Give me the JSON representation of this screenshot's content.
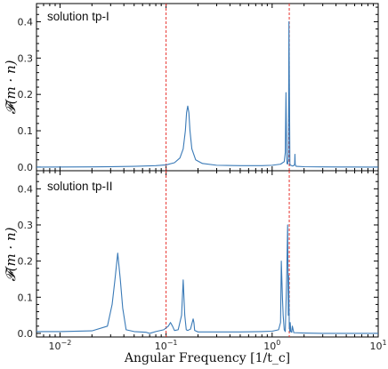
{
  "chart_data": [
    {
      "type": "line",
      "label": "solution tp-I",
      "xscale": "log",
      "xlim": [
        0.006,
        10
      ],
      "ylim": [
        -0.01,
        0.45
      ],
      "yticks": [
        0.0,
        0.1,
        0.2,
        0.3,
        0.4
      ],
      "ylabel": "𝓕(m · n)",
      "vlines": [
        0.1,
        1.45
      ],
      "line_color": "#3a7ab7",
      "vline_color": "#e8322d",
      "series": [
        {
          "x": [
            0.006,
            0.02,
            0.05,
            0.08,
            0.1,
            0.12,
            0.135,
            0.145,
            0.152,
            0.156,
            0.16,
            0.164,
            0.168,
            0.175,
            0.19,
            0.22,
            0.3,
            0.5,
            0.8,
            1.0,
            1.2,
            1.3,
            1.33,
            1.35,
            1.37,
            1.38,
            1.4,
            1.42,
            1.43,
            1.44,
            1.46,
            1.47,
            1.48,
            1.5,
            1.55,
            1.6,
            1.63,
            1.64,
            1.65,
            1.67,
            1.7,
            2.0,
            3.0,
            5.0,
            10.0
          ],
          "y": [
            0.0,
            0.0005,
            0.002,
            0.004,
            0.006,
            0.012,
            0.025,
            0.05,
            0.1,
            0.15,
            0.168,
            0.15,
            0.1,
            0.05,
            0.02,
            0.01,
            0.005,
            0.004,
            0.004,
            0.005,
            0.008,
            0.015,
            0.04,
            0.205,
            0.04,
            0.01,
            0.008,
            0.02,
            0.15,
            0.4,
            0.15,
            0.01,
            0.005,
            0.005,
            0.003,
            0.004,
            0.008,
            0.035,
            0.008,
            0.003,
            0.002,
            0.001,
            0.0005,
            0.0003,
            0.0
          ]
        }
      ]
    },
    {
      "type": "line",
      "label": "solution tp-II",
      "xscale": "log",
      "xlim": [
        0.006,
        10
      ],
      "ylim": [
        -0.01,
        0.45
      ],
      "yticks": [
        0.0,
        0.1,
        0.2,
        0.3,
        0.4
      ],
      "xticks": [
        "10^{-2}",
        "10^{-1}",
        "10^{0}",
        "10^{1}"
      ],
      "xlabel": "Angular Frequency [1/t_c]",
      "ylabel": "𝓕(m · n)",
      "vlines": [
        0.1,
        1.45
      ],
      "line_color": "#3a7ab7",
      "vline_color": "#e8322d",
      "series": [
        {
          "x": [
            0.006,
            0.01,
            0.02,
            0.028,
            0.031,
            0.033,
            0.035,
            0.037,
            0.039,
            0.042,
            0.05,
            0.065,
            0.07,
            0.08,
            0.095,
            0.105,
            0.11,
            0.115,
            0.12,
            0.13,
            0.14,
            0.145,
            0.15,
            0.155,
            0.16,
            0.17,
            0.18,
            0.183,
            0.186,
            0.2,
            0.3,
            0.5,
            0.8,
            1.0,
            1.15,
            1.2,
            1.22,
            1.25,
            1.27,
            1.3,
            1.33,
            1.37,
            1.4,
            1.42,
            1.43,
            1.44,
            1.45,
            1.46,
            1.47,
            1.48,
            1.5,
            1.53,
            1.55,
            1.6,
            2.0,
            3.0,
            5.0,
            10.0
          ],
          "y": [
            0.005,
            0.005,
            0.007,
            0.02,
            0.08,
            0.15,
            0.222,
            0.15,
            0.07,
            0.01,
            0.005,
            0.003,
            0.0,
            0.005,
            0.01,
            0.02,
            0.03,
            0.02,
            0.008,
            0.01,
            0.05,
            0.148,
            0.05,
            0.01,
            0.008,
            0.012,
            0.04,
            0.03,
            0.008,
            0.004,
            0.004,
            0.004,
            0.005,
            0.006,
            0.01,
            0.03,
            0.2,
            0.1,
            0.05,
            0.01,
            0.005,
            0.15,
            0.3,
            0.05,
            0.16,
            0.1,
            0.02,
            0.01,
            0.005,
            0.03,
            0.005,
            0.003,
            0.02,
            0.002,
            0.001,
            0.0,
            0.0,
            0.0
          ]
        }
      ]
    }
  ]
}
